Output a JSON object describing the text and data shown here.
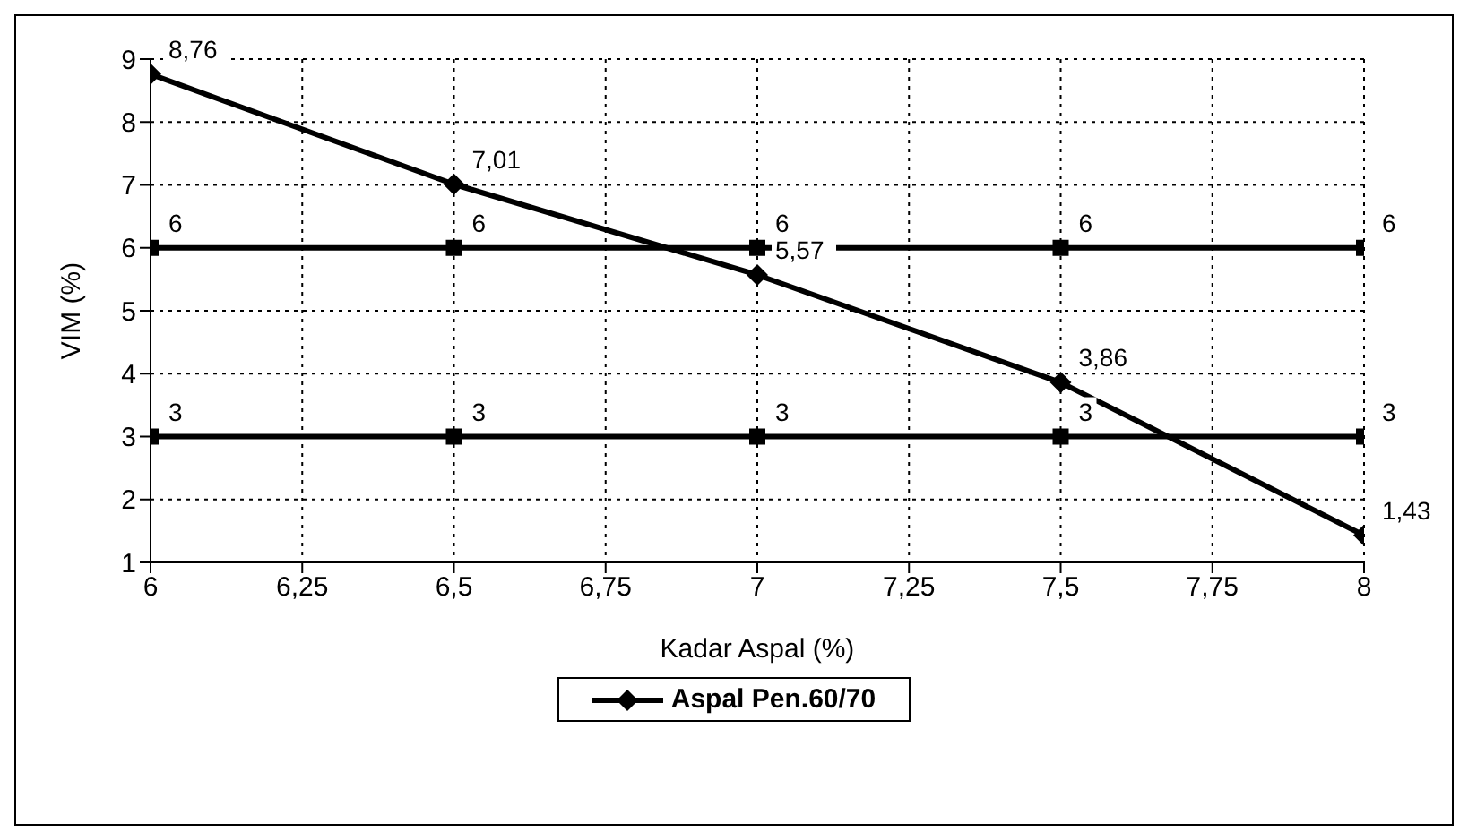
{
  "chart_data": {
    "type": "line",
    "xlabel": "Kadar Aspal (%)",
    "ylabel": "VIM (%)",
    "x": [
      6,
      6.5,
      7,
      7.5,
      8
    ],
    "series": [
      {
        "name": "Aspal Pen.60/70",
        "color": "#000000",
        "marker": "diamond",
        "values": [
          8.76,
          7.01,
          5.57,
          3.86,
          1.43
        ],
        "value_labels": [
          "8,76",
          "7,01",
          "5,57",
          "3,86",
          "1,43"
        ]
      },
      {
        "color": "#000000",
        "marker": "square",
        "values": [
          6,
          6,
          6,
          6,
          6
        ],
        "value_labels": [
          "6",
          "6",
          "6",
          "6",
          "6"
        ]
      },
      {
        "color": "#000000",
        "marker": "square",
        "values": [
          3,
          3,
          3,
          3,
          3
        ],
        "value_labels": [
          "3",
          "3",
          "3",
          "3",
          "3"
        ]
      }
    ],
    "xlim": [
      6,
      8
    ],
    "xticks": [
      6,
      {
        "value": 6.25,
        "label": "6,25"
      },
      {
        "value": 6.5,
        "label": "6,5"
      },
      {
        "value": 6.75,
        "label": "6,75"
      },
      7,
      {
        "value": 7.25,
        "label": "7,25"
      },
      {
        "value": 7.5,
        "label": "7,5"
      },
      {
        "value": 7.75,
        "label": "7,75"
      },
      8
    ],
    "ylim": [
      1,
      9
    ],
    "yticks": [
      1,
      2,
      3,
      4,
      5,
      6,
      7,
      8,
      9
    ],
    "grid": true,
    "legend": "bottom",
    "line_style": "solid"
  }
}
